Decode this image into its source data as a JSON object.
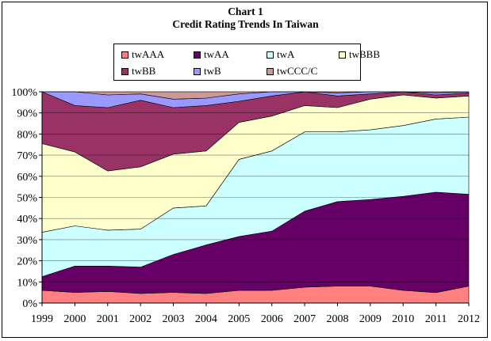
{
  "title": "Chart 1",
  "subtitle": "Credit Rating Trends In Taiwan",
  "chart_data": {
    "type": "area",
    "stacked": true,
    "percent": true,
    "x": [
      "1999",
      "2000",
      "2001",
      "2002",
      "2003",
      "2004",
      "2005",
      "2006",
      "2007",
      "2008",
      "2009",
      "2010",
      "2011",
      "2012"
    ],
    "ylim": [
      0,
      100
    ],
    "yticks": [
      "0%",
      "10%",
      "20%",
      "30%",
      "40%",
      "50%",
      "60%",
      "70%",
      "80%",
      "90%",
      "100%"
    ],
    "xlabel": "",
    "ylabel": "",
    "grid": true,
    "legend_position": "top",
    "series": [
      {
        "name": "twAAA",
        "color": "#FF8080",
        "values": [
          6,
          5,
          5.5,
          4.5,
          5,
          4.5,
          6,
          6,
          7.5,
          8,
          8,
          6,
          5,
          8
        ]
      },
      {
        "name": "twAA",
        "color": "#660066",
        "values": [
          6.5,
          12.5,
          12,
          12.5,
          18,
          23,
          25.5,
          28,
          36,
          40,
          41,
          44.5,
          48,
          43.5
        ]
      },
      {
        "name": "twA",
        "color": "#CCFFFF",
        "values": [
          21,
          19,
          17,
          18,
          22,
          18.5,
          36.5,
          38,
          37.5,
          33,
          33,
          33.5,
          35,
          36.5
        ]
      },
      {
        "name": "twBBB",
        "color": "#FFFFCC",
        "values": [
          42,
          35,
          28,
          29.5,
          25.5,
          26,
          17.5,
          16.5,
          12.5,
          11.5,
          14.5,
          14.5,
          10,
          10
        ]
      },
      {
        "name": "twBB",
        "color": "#993366",
        "values": [
          24.5,
          22,
          30,
          31.5,
          22,
          21.5,
          10,
          9.5,
          6.5,
          5.5,
          2.5,
          1.5,
          1.5,
          1.5
        ]
      },
      {
        "name": "twB",
        "color": "#9999FF",
        "values": [
          0,
          6.5,
          6,
          3,
          4,
          3.5,
          3.5,
          2,
          0,
          1.5,
          1,
          0,
          1,
          0.5
        ]
      },
      {
        "name": "twCCC/C",
        "color": "#CC9999",
        "values": [
          0,
          0,
          1.5,
          1,
          3.5,
          3,
          1,
          0,
          0,
          0.5,
          0,
          0,
          0.5,
          0
        ]
      }
    ]
  }
}
